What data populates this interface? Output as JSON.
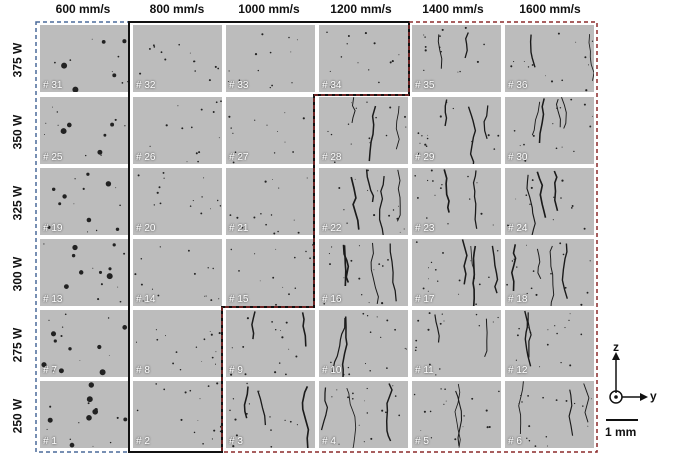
{
  "columns": [
    "600 mm/s",
    "800 mm/s",
    "1000 mm/s",
    "1200 mm/s",
    "1400 mm/s",
    "1600 mm/s"
  ],
  "rows": [
    "375 W",
    "350 W",
    "325 W",
    "300 W",
    "275 W",
    "250 W"
  ],
  "samples": [
    [
      "# 31",
      "# 32",
      "# 33",
      "# 34",
      "# 35",
      "# 36"
    ],
    [
      "# 25",
      "# 26",
      "# 27",
      "# 28",
      "# 29",
      "# 30"
    ],
    [
      "# 19",
      "# 20",
      "# 21",
      "# 22",
      "# 23",
      "# 24"
    ],
    [
      "# 13",
      "# 14",
      "# 15",
      "# 16",
      "# 17",
      "# 18"
    ],
    [
      "# 7",
      "# 8",
      "# 9",
      "# 10",
      "# 11",
      "# 12"
    ],
    [
      "# 1",
      "# 2",
      "# 3",
      "# 4",
      "# 5",
      "# 6"
    ]
  ],
  "axes": {
    "z": "z",
    "y": "y",
    "scale": "1 mm"
  },
  "colors": {
    "blue_region": "#4a6a9a",
    "black_region": "#111111",
    "red_region": "#8b2a2a",
    "tile_gray": "#bcbcbc"
  }
}
